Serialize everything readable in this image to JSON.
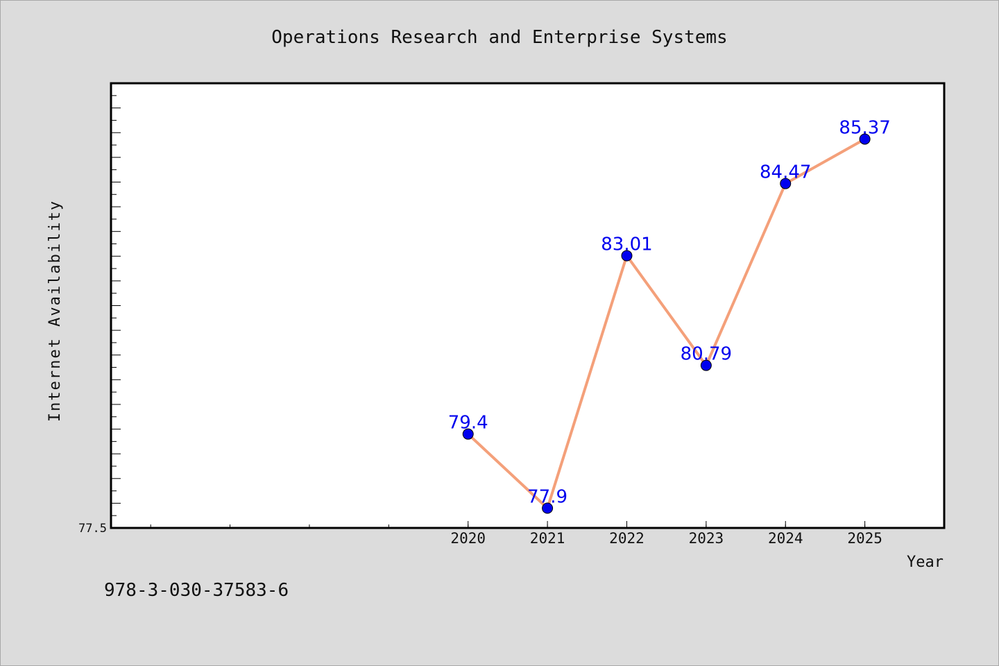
{
  "chart_data": {
    "type": "line",
    "title": "Operations Research and Enterprise Systems",
    "xlabel": "Year",
    "ylabel": "Internet Availability",
    "x": [
      2020,
      2021,
      2022,
      2023,
      2024,
      2025
    ],
    "series": [
      {
        "values": [
          79.4,
          77.9,
          83.01,
          80.79,
          84.47,
          85.37
        ]
      }
    ],
    "data_labels": [
      "79.4",
      "77.9",
      "83.01",
      "80.79",
      "84.47",
      "85.37"
    ],
    "xlim": [
      2015.5,
      2026.0
    ],
    "ylim": [
      77.5,
      86.5
    ],
    "ytick_labels": [
      "77.5"
    ],
    "grid": false,
    "line_color": "#f4a07a",
    "marker_color": "#0000ee",
    "label_color": "#0000ee"
  },
  "footer": {
    "isbn": "978-3-030-37583-6"
  }
}
